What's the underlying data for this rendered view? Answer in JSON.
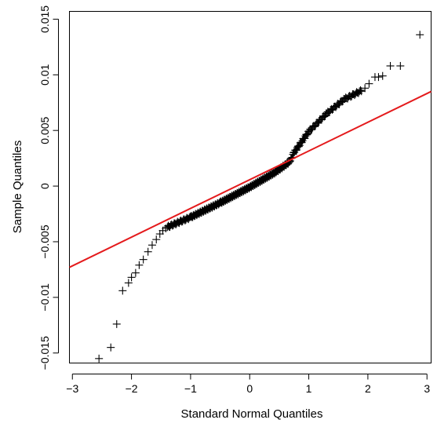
{
  "chart_data": {
    "type": "scatter",
    "title": "",
    "xlabel": "Standard Normal Quantiles",
    "ylabel": "Sample Quantiles",
    "xlim": [
      -3.05,
      3.07
    ],
    "ylim": [
      -0.0159,
      0.0157
    ],
    "x_ticks": [
      -3,
      -2,
      -1,
      0,
      1,
      2,
      3
    ],
    "x_tick_labels": [
      "−3",
      "−2",
      "−1",
      "0",
      "1",
      "2",
      "3"
    ],
    "y_ticks": [
      -0.015,
      -0.01,
      -0.005,
      0,
      0.005,
      0.01,
      0.015
    ],
    "y_tick_labels": [
      "−0.015",
      "−0.01",
      "−0.005",
      "0",
      "0.005",
      "0.01",
      "0.015"
    ],
    "grid": false,
    "marker": "+",
    "marker_color": "#000000",
    "reference_line": {
      "color": "#e41a1c",
      "points": [
        [
          -3.05,
          -0.0073
        ],
        [
          3.07,
          0.0085
        ]
      ]
    },
    "outliers": [
      [
        -2.55,
        -0.0155
      ],
      [
        -2.35,
        -0.0145
      ],
      [
        -2.25,
        -0.0124
      ],
      [
        -2.15,
        -0.0094
      ],
      [
        -2.05,
        -0.0087
      ],
      [
        -2.0,
        -0.0082
      ],
      [
        -1.93,
        -0.0078
      ],
      [
        -1.87,
        -0.0071
      ],
      [
        -1.8,
        -0.0066
      ],
      [
        -1.72,
        -0.0059
      ],
      [
        -1.65,
        -0.0053
      ],
      [
        -1.58,
        -0.0048
      ],
      [
        -1.52,
        -0.0043
      ],
      [
        -1.47,
        -0.004
      ],
      [
        -1.42,
        -0.0038
      ],
      [
        2.88,
        0.0136
      ],
      [
        2.55,
        0.0108
      ],
      [
        2.38,
        0.0108
      ],
      [
        2.25,
        0.0099
      ],
      [
        2.18,
        0.0098
      ],
      [
        2.12,
        0.0098
      ],
      [
        2.02,
        0.0092
      ],
      [
        1.95,
        0.0088
      ]
    ],
    "body_segments": [
      {
        "from": [
          -1.4,
          -0.0037
        ],
        "to": [
          -1.0,
          -0.0028
        ],
        "count": 28
      },
      {
        "from": [
          -1.0,
          -0.0028
        ],
        "to": [
          -0.5,
          -0.0015
        ],
        "count": 50
      },
      {
        "from": [
          -0.5,
          -0.0015
        ],
        "to": [
          0.0,
          -0.0001
        ],
        "count": 60
      },
      {
        "from": [
          0.0,
          -0.0001
        ],
        "to": [
          0.45,
          0.0013
        ],
        "count": 55
      },
      {
        "from": [
          0.45,
          0.0013
        ],
        "to": [
          0.68,
          0.0022
        ],
        "count": 25
      },
      {
        "from": [
          0.68,
          0.0022
        ],
        "to": [
          0.75,
          0.003
        ],
        "count": 6
      },
      {
        "from": [
          0.75,
          0.003
        ],
        "to": [
          1.0,
          0.0049
        ],
        "count": 20
      },
      {
        "from": [
          1.0,
          0.0049
        ],
        "to": [
          1.3,
          0.0065
        ],
        "count": 20
      },
      {
        "from": [
          1.3,
          0.0065
        ],
        "to": [
          1.6,
          0.0078
        ],
        "count": 20
      },
      {
        "from": [
          1.6,
          0.0078
        ],
        "to": [
          1.9,
          0.0086
        ],
        "count": 18
      }
    ]
  }
}
